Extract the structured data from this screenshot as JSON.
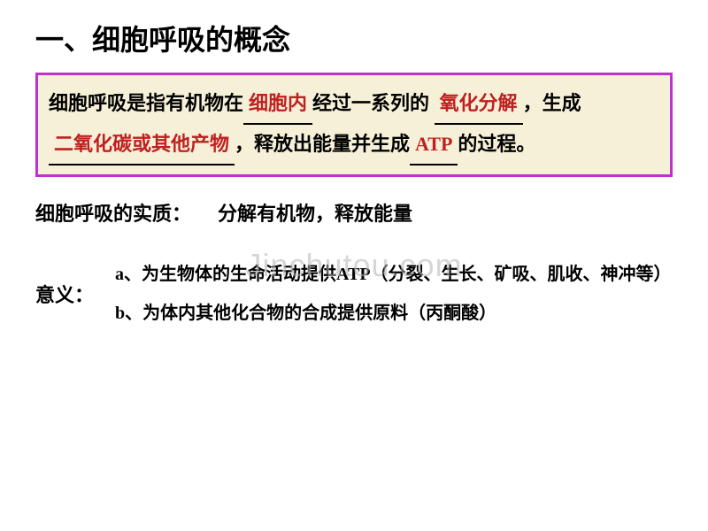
{
  "title": "一、细胞呼吸的概念",
  "definition": {
    "before1": "细胞呼吸是指有机物在",
    "blank1": "细胞内",
    "after1": "经过一系列的",
    "blank2": "氧化分解",
    "after2": "，生成",
    "blank3": "二氧化碳或其他产物",
    "after3": "，释放出能量并生成",
    "blank4": "ATP",
    "after4": "的过程。"
  },
  "essence": {
    "label": "细胞呼吸的实质：",
    "value": "分解有机物，释放能量"
  },
  "meaning": {
    "label": "意义：",
    "item_a": "a、为生物体的生命活动提供ATP（分裂、生长、矿吸、肌收、神冲等）",
    "item_b": "b、为体内其他化合物的合成提供原料（丙酮酸）"
  },
  "watermark": "Jinchutou.com",
  "colors": {
    "box_border": "#c030d0",
    "box_bg": "#f7f0d8",
    "blank_text": "#c02020",
    "text": "#000000",
    "watermark": "rgba(180,180,180,0.55)"
  }
}
